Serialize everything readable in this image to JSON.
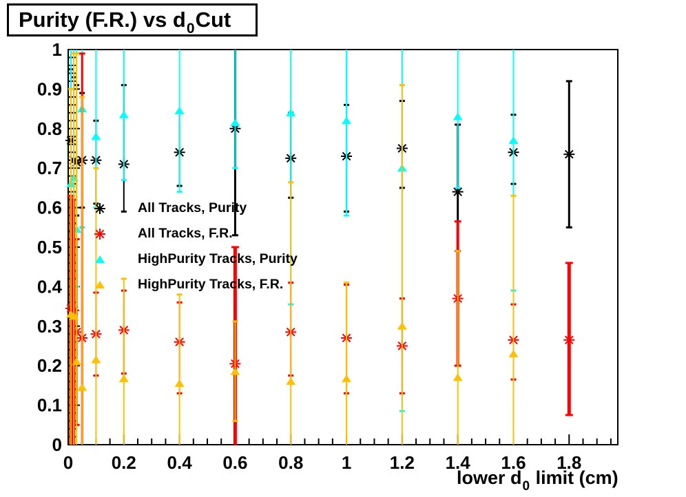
{
  "title": {
    "main": "Purity (F.R.) vs d",
    "sub": "0",
    "tail": " Cut"
  },
  "axes": {
    "x": {
      "label_main": "lower d",
      "label_sub": "0",
      "label_tail": " limit (cm)",
      "min": 0,
      "max": 1.975,
      "major_step": 0.2,
      "minor_step": 0.05,
      "tick_labels": [
        "0",
        "0.2",
        "0.4",
        "0.6",
        "0.8",
        "1",
        "1.2",
        "1.4",
        "1.6",
        "1.8"
      ],
      "tick_values": [
        0,
        0.2,
        0.4,
        0.6,
        0.8,
        1.0,
        1.2,
        1.4,
        1.6,
        1.8
      ]
    },
    "y": {
      "min": 0,
      "max": 1.0,
      "major_step": 0.1,
      "minor_step": 0.02,
      "tick_labels": [
        "0",
        "0.1",
        "0.2",
        "0.3",
        "0.4",
        "0.5",
        "0.6",
        "0.7",
        "0.8",
        "0.9",
        "1"
      ],
      "tick_values": [
        0,
        0.1,
        0.2,
        0.3,
        0.4,
        0.5,
        0.6,
        0.7,
        0.8,
        0.9,
        1.0
      ]
    }
  },
  "legend": {
    "entries": [
      {
        "label": "All Tracks, Purity",
        "marker": "asterisk-icon",
        "color": "#000000"
      },
      {
        "label": "All Tracks, F.R.",
        "marker": "asterisk-icon",
        "color": "#ff0000"
      },
      {
        "label": "HighPurity Tracks, Purity",
        "marker": "triangle-icon",
        "color": "#00ffff"
      },
      {
        "label": "HighPurity Tracks, F.R.",
        "marker": "triangle-icon",
        "color": "#ffc000"
      }
    ]
  },
  "colors": {
    "frame": "#000000",
    "background": "#ffffff",
    "all_purity": "#000000",
    "all_fr": "#ff0000",
    "hp_purity": "#00ffff",
    "hp_fr": "#ffc000"
  },
  "chart_data": {
    "type": "scatter",
    "title": "Purity (F.R.) vs d0 Cut",
    "xlabel": "lower d0 limit (cm)",
    "ylabel": "",
    "xlim": [
      0,
      1.975
    ],
    "ylim": [
      0,
      1.0
    ],
    "grid": false,
    "legend_position": "upper-left-inside",
    "note": "vertical lines are error bars [lo,hi]; w = line pixel width; draw order black, cyan, red, orange",
    "series": [
      {
        "name": "All Tracks, Purity",
        "marker": "asterisk",
        "color": "#000000",
        "points": [
          {
            "x": 0.01,
            "y": 0.77,
            "lo": 0.54,
            "hi": 0.95,
            "w": 2
          },
          {
            "x": 0.02,
            "y": 0.72,
            "lo": 0.56,
            "hi": 0.93,
            "w": 2
          },
          {
            "x": 0.03,
            "y": 0.715,
            "lo": 0.58,
            "hi": 0.91,
            "w": 2
          },
          {
            "x": 0.05,
            "y": 0.72,
            "lo": 0.6,
            "hi": 0.89,
            "w": 2
          },
          {
            "x": 0.1,
            "y": 0.72,
            "lo": 0.61,
            "hi": 0.82,
            "w": 2
          },
          {
            "x": 0.2,
            "y": 0.71,
            "lo": 0.59,
            "hi": 0.91,
            "w": 2
          },
          {
            "x": 0.4,
            "y": 0.74,
            "lo": 0.655,
            "hi": 0.84,
            "w": 2
          },
          {
            "x": 0.6,
            "y": 0.8,
            "lo": 0.53,
            "hi": 1.0,
            "w": 3
          },
          {
            "x": 0.8,
            "y": 0.725,
            "lo": 0.625,
            "hi": 0.84,
            "w": 2
          },
          {
            "x": 1.0,
            "y": 0.73,
            "lo": 0.59,
            "hi": 0.86,
            "w": 2
          },
          {
            "x": 1.2,
            "y": 0.75,
            "lo": 0.65,
            "hi": 0.87,
            "w": 2
          },
          {
            "x": 1.4,
            "y": 0.64,
            "lo": 0.49,
            "hi": 0.81,
            "w": 3
          },
          {
            "x": 1.6,
            "y": 0.74,
            "lo": 0.66,
            "hi": 0.835,
            "w": 2
          },
          {
            "x": 1.8,
            "y": 0.735,
            "lo": 0.55,
            "hi": 0.92,
            "w": 3
          }
        ]
      },
      {
        "name": "HighPurity Tracks, Purity",
        "marker": "triangle",
        "color": "#00ffff",
        "points": [
          {
            "x": 0.01,
            "y": 0.66,
            "lo": 0.35,
            "hi": 1.0,
            "w": 2
          },
          {
            "x": 0.02,
            "y": 0.675,
            "lo": 0.38,
            "hi": 1.0,
            "w": 2
          },
          {
            "x": 0.03,
            "y": 0.545,
            "lo": 0.4,
            "hi": 1.0,
            "w": 2
          },
          {
            "x": 0.05,
            "y": 0.85,
            "lo": 0.55,
            "hi": 1.0,
            "w": 2
          },
          {
            "x": 0.1,
            "y": 0.78,
            "lo": 0.6,
            "hi": 1.0,
            "w": 2
          },
          {
            "x": 0.2,
            "y": 0.835,
            "lo": 0.67,
            "hi": 1.0,
            "w": 2
          },
          {
            "x": 0.4,
            "y": 0.845,
            "lo": 0.64,
            "hi": 1.0,
            "w": 2
          },
          {
            "x": 0.6,
            "y": 0.815,
            "lo": 0.7,
            "hi": 1.0,
            "w": 2
          },
          {
            "x": 0.8,
            "y": 0.84,
            "lo": 0.355,
            "hi": 1.0,
            "w": 2
          },
          {
            "x": 1.0,
            "y": 0.82,
            "lo": 0.58,
            "hi": 1.0,
            "w": 2
          },
          {
            "x": 1.2,
            "y": 0.7,
            "lo": 0.085,
            "hi": 1.0,
            "w": 2
          },
          {
            "x": 1.4,
            "y": 0.83,
            "lo": 0.65,
            "hi": 1.0,
            "w": 2
          },
          {
            "x": 1.6,
            "y": 0.77,
            "lo": 0.39,
            "hi": 1.0,
            "w": 2
          }
        ]
      },
      {
        "name": "All Tracks, F.R.",
        "marker": "asterisk",
        "color": "#ff0000",
        "points": [
          {
            "x": 0.01,
            "y": 0.345,
            "lo": 0.0,
            "hi": 0.63,
            "w": 5
          },
          {
            "x": 0.02,
            "y": 0.34,
            "lo": 0.0,
            "hi": 0.62,
            "w": 4
          },
          {
            "x": 0.03,
            "y": 0.285,
            "lo": 0.05,
            "hi": 0.52,
            "w": 3
          },
          {
            "x": 0.05,
            "y": 0.27,
            "lo": 0.0,
            "hi": 0.99,
            "w": 3
          },
          {
            "x": 0.1,
            "y": 0.28,
            "lo": 0.175,
            "hi": 0.385,
            "w": 2
          },
          {
            "x": 0.2,
            "y": 0.29,
            "lo": 0.18,
            "hi": 0.39,
            "w": 2
          },
          {
            "x": 0.4,
            "y": 0.26,
            "lo": 0.13,
            "hi": 0.36,
            "w": 2
          },
          {
            "x": 0.6,
            "y": 0.205,
            "lo": 0.0,
            "hi": 0.5,
            "w": 5
          },
          {
            "x": 0.8,
            "y": 0.285,
            "lo": 0.175,
            "hi": 0.41,
            "w": 2
          },
          {
            "x": 1.0,
            "y": 0.27,
            "lo": 0.13,
            "hi": 0.405,
            "w": 2
          },
          {
            "x": 1.2,
            "y": 0.25,
            "lo": 0.13,
            "hi": 0.37,
            "w": 2
          },
          {
            "x": 1.4,
            "y": 0.37,
            "lo": 0.2,
            "hi": 0.565,
            "w": 4
          },
          {
            "x": 1.6,
            "y": 0.265,
            "lo": 0.165,
            "hi": 0.355,
            "w": 2
          },
          {
            "x": 1.8,
            "y": 0.265,
            "lo": 0.075,
            "hi": 0.46,
            "w": 5
          }
        ]
      },
      {
        "name": "HighPurity Tracks, F.R.",
        "marker": "triangle",
        "color": "#ffc000",
        "points": [
          {
            "x": 0.01,
            "y": 0.33,
            "lo": 0.0,
            "hi": 0.9,
            "w": 2
          },
          {
            "x": 0.02,
            "y": 0.325,
            "lo": 0.0,
            "hi": 0.99,
            "w": 2
          },
          {
            "x": 0.03,
            "y": 0.21,
            "lo": 0.0,
            "hi": 0.99,
            "w": 2
          },
          {
            "x": 0.05,
            "y": 0.145,
            "lo": 0.0,
            "hi": 0.88,
            "w": 2
          },
          {
            "x": 0.1,
            "y": 0.215,
            "lo": 0.0,
            "hi": 0.7,
            "w": 2
          },
          {
            "x": 0.2,
            "y": 0.167,
            "lo": 0.0,
            "hi": 0.42,
            "w": 2
          },
          {
            "x": 0.4,
            "y": 0.155,
            "lo": 0.0,
            "hi": 0.38,
            "w": 2
          },
          {
            "x": 0.6,
            "y": 0.185,
            "lo": 0.06,
            "hi": 0.312,
            "w": 2
          },
          {
            "x": 0.8,
            "y": 0.16,
            "lo": 0.0,
            "hi": 0.664,
            "w": 2
          },
          {
            "x": 1.0,
            "y": 0.167,
            "lo": 0.0,
            "hi": 0.41,
            "w": 2
          },
          {
            "x": 1.2,
            "y": 0.3,
            "lo": 0.0,
            "hi": 0.91,
            "w": 2
          },
          {
            "x": 1.4,
            "y": 0.17,
            "lo": 0.0,
            "hi": 0.49,
            "w": 2
          },
          {
            "x": 1.6,
            "y": 0.23,
            "lo": 0.0,
            "hi": 0.63,
            "w": 2
          }
        ]
      }
    ]
  }
}
